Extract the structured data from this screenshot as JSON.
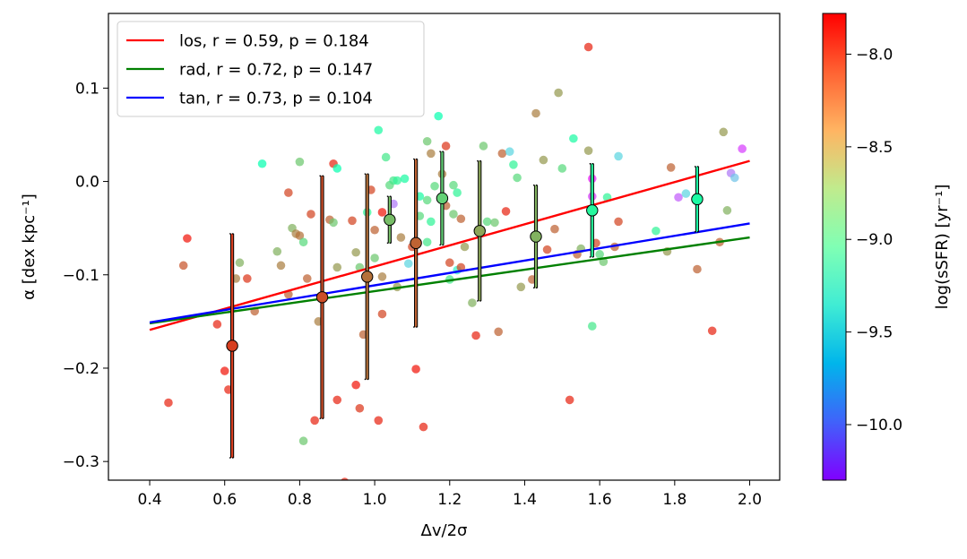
{
  "chart_data": {
    "type": "scatter",
    "title": "",
    "xlabel": "Δv/2σ",
    "ylabel": "α [dex kpc⁻¹]",
    "xlim": [
      0.29,
      2.08
    ],
    "ylim": [
      -0.32,
      0.18
    ],
    "x_ticks": [
      0.4,
      0.6,
      0.8,
      1.0,
      1.2,
      1.4,
      1.6,
      1.8,
      2.0
    ],
    "x_tick_labels": [
      "0.4",
      "0.6",
      "0.8",
      "1.0",
      "1.2",
      "1.4",
      "1.6",
      "1.8",
      "2.0"
    ],
    "y_ticks": [
      -0.3,
      -0.2,
      -0.1,
      0.0,
      0.1
    ],
    "y_tick_labels": [
      "−0.3",
      "−0.2",
      "−0.1",
      "0.0",
      "0.1"
    ],
    "grid": false,
    "legend_position": "top-left",
    "legend": [
      {
        "label": "los, r = 0.59, p = 0.184",
        "color": "#ff0000"
      },
      {
        "label": "rad, r = 0.72, p = 0.147",
        "color": "#008000"
      },
      {
        "label": "tan, r = 0.73, p = 0.104",
        "color": "#0000ff"
      }
    ],
    "fit_lines": [
      {
        "name": "los",
        "color": "#ff0000",
        "x": [
          0.4,
          2.0
        ],
        "y": [
          -0.159,
          0.022
        ]
      },
      {
        "name": "rad",
        "color": "#008000",
        "x": [
          0.4,
          2.0
        ],
        "y": [
          -0.152,
          -0.06
        ]
      },
      {
        "name": "tan",
        "color": "#0000ff",
        "x": [
          0.4,
          2.0
        ],
        "y": [
          -0.151,
          -0.045
        ]
      }
    ],
    "colorbar": {
      "label": "log(sSFR) [yr⁻¹]",
      "vmin": -10.3,
      "vmax": -7.78,
      "ticks": [
        -8.0,
        -8.5,
        -9.0,
        -9.5,
        -10.0
      ],
      "tick_labels": [
        "−8.0",
        "−8.5",
        "−9.0",
        "−9.5",
        "−10.0"
      ],
      "colormap": "rainbow"
    },
    "binned_points": [
      {
        "x": 0.62,
        "y": -0.176,
        "err": 0.12,
        "ssfr": -7.98
      },
      {
        "x": 0.86,
        "y": -0.124,
        "err": 0.13,
        "ssfr": -8.03
      },
      {
        "x": 0.98,
        "y": -0.102,
        "err": 0.11,
        "ssfr": -8.15
      },
      {
        "x": 1.04,
        "y": -0.041,
        "err": 0.025,
        "ssfr": -8.45
      },
      {
        "x": 1.11,
        "y": -0.066,
        "err": 0.09,
        "ssfr": -8.1
      },
      {
        "x": 1.18,
        "y": -0.018,
        "err": 0.05,
        "ssfr": -8.55
      },
      {
        "x": 1.28,
        "y": -0.053,
        "err": 0.075,
        "ssfr": -8.35
      },
      {
        "x": 1.43,
        "y": -0.059,
        "err": 0.055,
        "ssfr": -8.4
      },
      {
        "x": 1.58,
        "y": -0.031,
        "err": 0.05,
        "ssfr": -8.85
      },
      {
        "x": 1.86,
        "y": -0.019,
        "err": 0.035,
        "ssfr": -8.9
      }
    ],
    "points": [
      {
        "x": 0.45,
        "y": -0.237,
        "ssfr": -7.9
      },
      {
        "x": 0.49,
        "y": -0.09,
        "ssfr": -8.05
      },
      {
        "x": 0.5,
        "y": -0.061,
        "ssfr": -7.85
      },
      {
        "x": 0.58,
        "y": -0.153,
        "ssfr": -7.9
      },
      {
        "x": 0.6,
        "y": -0.203,
        "ssfr": -7.85
      },
      {
        "x": 0.61,
        "y": -0.223,
        "ssfr": -7.9
      },
      {
        "x": 0.63,
        "y": -0.104,
        "ssfr": -8.2
      },
      {
        "x": 0.64,
        "y": -0.087,
        "ssfr": -8.4
      },
      {
        "x": 0.66,
        "y": -0.104,
        "ssfr": -7.95
      },
      {
        "x": 0.68,
        "y": -0.139,
        "ssfr": -8.1
      },
      {
        "x": 0.7,
        "y": 0.019,
        "ssfr": -9.0
      },
      {
        "x": 0.74,
        "y": -0.075,
        "ssfr": -8.4
      },
      {
        "x": 0.75,
        "y": -0.09,
        "ssfr": -8.2
      },
      {
        "x": 0.77,
        "y": -0.012,
        "ssfr": -8.0
      },
      {
        "x": 0.77,
        "y": -0.121,
        "ssfr": -8.1
      },
      {
        "x": 0.78,
        "y": -0.05,
        "ssfr": -8.4
      },
      {
        "x": 0.79,
        "y": -0.056,
        "ssfr": -8.2
      },
      {
        "x": 0.8,
        "y": 0.021,
        "ssfr": -8.5
      },
      {
        "x": 0.8,
        "y": -0.058,
        "ssfr": -8.15
      },
      {
        "x": 0.81,
        "y": -0.065,
        "ssfr": -8.6
      },
      {
        "x": 0.81,
        "y": -0.278,
        "ssfr": -8.5
      },
      {
        "x": 0.82,
        "y": -0.104,
        "ssfr": -8.1
      },
      {
        "x": 0.83,
        "y": -0.035,
        "ssfr": -8.0
      },
      {
        "x": 0.84,
        "y": -0.256,
        "ssfr": -7.9
      },
      {
        "x": 0.85,
        "y": -0.15,
        "ssfr": -8.2
      },
      {
        "x": 0.88,
        "y": -0.041,
        "ssfr": -8.1
      },
      {
        "x": 0.89,
        "y": 0.019,
        "ssfr": -7.9
      },
      {
        "x": 0.89,
        "y": -0.044,
        "ssfr": -8.5
      },
      {
        "x": 0.9,
        "y": 0.014,
        "ssfr": -9.0
      },
      {
        "x": 0.9,
        "y": -0.092,
        "ssfr": -8.3
      },
      {
        "x": 0.9,
        "y": -0.234,
        "ssfr": -7.9
      },
      {
        "x": 0.92,
        "y": -0.322,
        "ssfr": -7.9
      },
      {
        "x": 0.94,
        "y": -0.042,
        "ssfr": -8.0
      },
      {
        "x": 0.95,
        "y": -0.076,
        "ssfr": -8.3
      },
      {
        "x": 0.95,
        "y": -0.218,
        "ssfr": -7.85
      },
      {
        "x": 0.96,
        "y": -0.092,
        "ssfr": -8.5
      },
      {
        "x": 0.96,
        "y": -0.243,
        "ssfr": -7.95
      },
      {
        "x": 0.97,
        "y": -0.164,
        "ssfr": -8.1
      },
      {
        "x": 0.98,
        "y": -0.033,
        "ssfr": -8.8
      },
      {
        "x": 0.99,
        "y": -0.009,
        "ssfr": -8.0
      },
      {
        "x": 1.0,
        "y": -0.052,
        "ssfr": -8.1
      },
      {
        "x": 1.0,
        "y": -0.082,
        "ssfr": -8.5
      },
      {
        "x": 1.01,
        "y": 0.055,
        "ssfr": -8.9
      },
      {
        "x": 1.01,
        "y": -0.256,
        "ssfr": -7.9
      },
      {
        "x": 1.02,
        "y": -0.033,
        "ssfr": -7.85
      },
      {
        "x": 1.02,
        "y": -0.102,
        "ssfr": -8.2
      },
      {
        "x": 1.02,
        "y": -0.142,
        "ssfr": -8.0
      },
      {
        "x": 1.03,
        "y": 0.026,
        "ssfr": -8.7
      },
      {
        "x": 1.04,
        "y": -0.004,
        "ssfr": -8.6
      },
      {
        "x": 1.05,
        "y": 0.001,
        "ssfr": -8.7
      },
      {
        "x": 1.05,
        "y": -0.024,
        "ssfr": -9.9
      },
      {
        "x": 1.06,
        "y": 0.001,
        "ssfr": -8.8
      },
      {
        "x": 1.06,
        "y": -0.113,
        "ssfr": -8.3
      },
      {
        "x": 1.07,
        "y": -0.06,
        "ssfr": -8.2
      },
      {
        "x": 1.08,
        "y": 0.003,
        "ssfr": -8.9
      },
      {
        "x": 1.09,
        "y": -0.088,
        "ssfr": -9.5
      },
      {
        "x": 1.1,
        "y": -0.07,
        "ssfr": -8.0
      },
      {
        "x": 1.11,
        "y": -0.201,
        "ssfr": -7.85
      },
      {
        "x": 1.12,
        "y": -0.016,
        "ssfr": -8.9
      },
      {
        "x": 1.12,
        "y": -0.037,
        "ssfr": -8.6
      },
      {
        "x": 1.13,
        "y": -0.263,
        "ssfr": -7.9
      },
      {
        "x": 1.14,
        "y": 0.043,
        "ssfr": -8.5
      },
      {
        "x": 1.14,
        "y": -0.02,
        "ssfr": -8.6
      },
      {
        "x": 1.14,
        "y": -0.065,
        "ssfr": -8.7
      },
      {
        "x": 1.15,
        "y": 0.03,
        "ssfr": -8.2
      },
      {
        "x": 1.15,
        "y": -0.043,
        "ssfr": -8.8
      },
      {
        "x": 1.16,
        "y": -0.005,
        "ssfr": -8.6
      },
      {
        "x": 1.17,
        "y": 0.07,
        "ssfr": -9.0
      },
      {
        "x": 1.18,
        "y": 0.008,
        "ssfr": -8.2
      },
      {
        "x": 1.19,
        "y": 0.038,
        "ssfr": -7.95
      },
      {
        "x": 1.19,
        "y": -0.026,
        "ssfr": -8.1
      },
      {
        "x": 1.2,
        "y": -0.087,
        "ssfr": -8.0
      },
      {
        "x": 1.2,
        "y": -0.105,
        "ssfr": -8.7
      },
      {
        "x": 1.21,
        "y": -0.004,
        "ssfr": -8.6
      },
      {
        "x": 1.21,
        "y": -0.035,
        "ssfr": -8.5
      },
      {
        "x": 1.22,
        "y": -0.012,
        "ssfr": -8.8
      },
      {
        "x": 1.22,
        "y": -0.095,
        "ssfr": -9.3
      },
      {
        "x": 1.23,
        "y": -0.04,
        "ssfr": -8.1
      },
      {
        "x": 1.23,
        "y": -0.092,
        "ssfr": -8.0
      },
      {
        "x": 1.24,
        "y": -0.07,
        "ssfr": -8.3
      },
      {
        "x": 1.26,
        "y": -0.13,
        "ssfr": -8.4
      },
      {
        "x": 1.27,
        "y": -0.165,
        "ssfr": -7.9
      },
      {
        "x": 1.29,
        "y": 0.038,
        "ssfr": -8.5
      },
      {
        "x": 1.3,
        "y": -0.043,
        "ssfr": -8.6
      },
      {
        "x": 1.32,
        "y": -0.044,
        "ssfr": -8.5
      },
      {
        "x": 1.33,
        "y": -0.161,
        "ssfr": -8.1
      },
      {
        "x": 1.34,
        "y": 0.03,
        "ssfr": -8.1
      },
      {
        "x": 1.35,
        "y": -0.032,
        "ssfr": -7.9
      },
      {
        "x": 1.36,
        "y": 0.032,
        "ssfr": -9.5
      },
      {
        "x": 1.37,
        "y": 0.018,
        "ssfr": -8.8
      },
      {
        "x": 1.38,
        "y": 0.004,
        "ssfr": -8.6
      },
      {
        "x": 1.39,
        "y": -0.113,
        "ssfr": -8.3
      },
      {
        "x": 1.42,
        "y": -0.105,
        "ssfr": -8.1
      },
      {
        "x": 1.43,
        "y": 0.073,
        "ssfr": -8.2
      },
      {
        "x": 1.45,
        "y": 0.023,
        "ssfr": -8.3
      },
      {
        "x": 1.46,
        "y": -0.073,
        "ssfr": -8.0
      },
      {
        "x": 1.48,
        "y": -0.051,
        "ssfr": -8.1
      },
      {
        "x": 1.49,
        "y": 0.095,
        "ssfr": -8.3
      },
      {
        "x": 1.5,
        "y": 0.014,
        "ssfr": -8.6
      },
      {
        "x": 1.52,
        "y": -0.234,
        "ssfr": -7.9
      },
      {
        "x": 1.53,
        "y": 0.046,
        "ssfr": -8.9
      },
      {
        "x": 1.54,
        "y": -0.078,
        "ssfr": -8.1
      },
      {
        "x": 1.55,
        "y": -0.072,
        "ssfr": -8.4
      },
      {
        "x": 1.57,
        "y": 0.144,
        "ssfr": -7.9
      },
      {
        "x": 1.57,
        "y": 0.033,
        "ssfr": -8.3
      },
      {
        "x": 1.58,
        "y": 0.003,
        "ssfr": -10.2
      },
      {
        "x": 1.58,
        "y": -0.016,
        "ssfr": -10.1
      },
      {
        "x": 1.58,
        "y": -0.155,
        "ssfr": -8.7
      },
      {
        "x": 1.59,
        "y": -0.066,
        "ssfr": -8.0
      },
      {
        "x": 1.6,
        "y": -0.078,
        "ssfr": -8.6
      },
      {
        "x": 1.61,
        "y": -0.086,
        "ssfr": -8.5
      },
      {
        "x": 1.62,
        "y": -0.017,
        "ssfr": -8.8
      },
      {
        "x": 1.64,
        "y": -0.07,
        "ssfr": -8.1
      },
      {
        "x": 1.65,
        "y": 0.027,
        "ssfr": -9.5
      },
      {
        "x": 1.65,
        "y": -0.043,
        "ssfr": -8.0
      },
      {
        "x": 1.75,
        "y": -0.053,
        "ssfr": -8.8
      },
      {
        "x": 1.78,
        "y": -0.075,
        "ssfr": -8.3
      },
      {
        "x": 1.79,
        "y": 0.015,
        "ssfr": -8.1
      },
      {
        "x": 1.81,
        "y": -0.017,
        "ssfr": -10.0
      },
      {
        "x": 1.83,
        "y": -0.013,
        "ssfr": -9.5
      },
      {
        "x": 1.86,
        "y": -0.094,
        "ssfr": -8.1
      },
      {
        "x": 1.9,
        "y": -0.16,
        "ssfr": -7.9
      },
      {
        "x": 1.92,
        "y": -0.065,
        "ssfr": -8.1
      },
      {
        "x": 1.93,
        "y": 0.053,
        "ssfr": -8.3
      },
      {
        "x": 1.94,
        "y": -0.031,
        "ssfr": -8.4
      },
      {
        "x": 1.95,
        "y": 0.009,
        "ssfr": -9.9
      },
      {
        "x": 1.96,
        "y": 0.004,
        "ssfr": -9.6
      },
      {
        "x": 1.98,
        "y": 0.035,
        "ssfr": -10.1
      }
    ]
  }
}
